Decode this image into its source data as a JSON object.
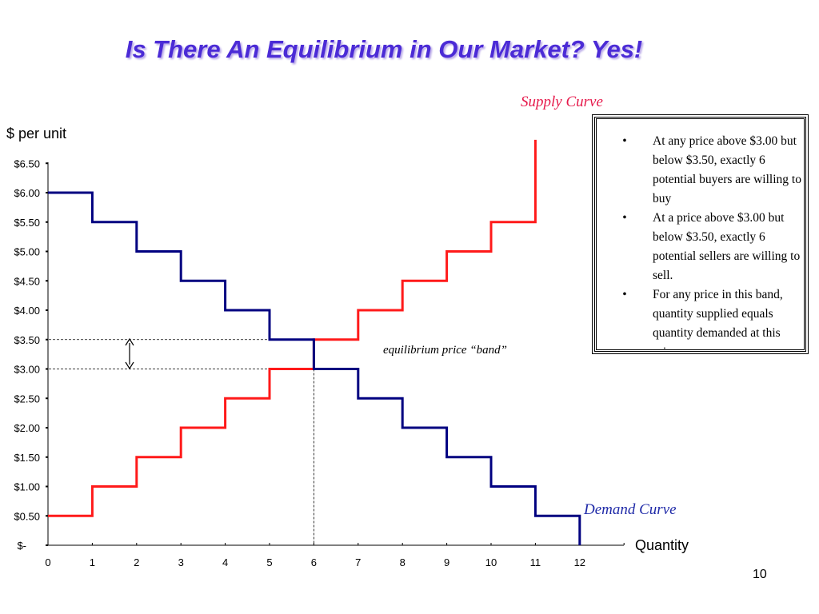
{
  "slide": {
    "title": "Is There An Equilibrium in Our Market? Yes!",
    "page_number": "10"
  },
  "notes": [
    "At any price above $3.00 but below $3.50, exactly 6 potential buyers are willing to buy",
    "At a price above $3.00 but below $3.50, exactly 6 potential sellers are willing to sell.",
    "For any price in this band, quantity supplied equals quantity demanded at this price."
  ],
  "chart_data": {
    "type": "line",
    "step": true,
    "ylabel": "$ per unit",
    "xlabel": "Quantity",
    "x_ticks": [
      "0",
      "1",
      "2",
      "3",
      "4",
      "5",
      "6",
      "7",
      "8",
      "9",
      "10",
      "11",
      "12"
    ],
    "y_ticks": [
      "$-",
      "$0.50",
      "$1.00",
      "$1.50",
      "$2.00",
      "$2.50",
      "$3.00",
      "$3.50",
      "$4.00",
      "$4.50",
      "$5.00",
      "$5.50",
      "$6.00",
      "$6.50"
    ],
    "xlim": [
      0,
      13
    ],
    "ylim": [
      0,
      6.5
    ],
    "series": [
      {
        "name": "Supply Curve",
        "color": "#ff1a1a",
        "steps": [
          {
            "from": 0,
            "to": 1,
            "price": 0.5
          },
          {
            "from": 1,
            "to": 2,
            "price": 1.0
          },
          {
            "from": 2,
            "to": 3,
            "price": 1.5
          },
          {
            "from": 3,
            "to": 4,
            "price": 2.0
          },
          {
            "from": 4,
            "to": 5,
            "price": 2.5
          },
          {
            "from": 5,
            "to": 6,
            "price": 3.0
          },
          {
            "from": 6,
            "to": 7,
            "price": 3.5
          },
          {
            "from": 7,
            "to": 8,
            "price": 4.0
          },
          {
            "from": 8,
            "to": 9,
            "price": 4.5
          },
          {
            "from": 9,
            "to": 10,
            "price": 5.0
          },
          {
            "from": 10,
            "to": 11,
            "price": 5.5
          }
        ],
        "end_price": 6.9
      },
      {
        "name": "Demand Curve",
        "color": "#000080",
        "steps": [
          {
            "from": 0,
            "to": 1,
            "price": 6.0
          },
          {
            "from": 1,
            "to": 2,
            "price": 5.5
          },
          {
            "from": 2,
            "to": 3,
            "price": 5.0
          },
          {
            "from": 3,
            "to": 4,
            "price": 4.5
          },
          {
            "from": 4,
            "to": 5,
            "price": 4.0
          },
          {
            "from": 5,
            "to": 6,
            "price": 3.5
          },
          {
            "from": 6,
            "to": 7,
            "price": 3.0
          },
          {
            "from": 7,
            "to": 8,
            "price": 2.5
          },
          {
            "from": 8,
            "to": 9,
            "price": 2.0
          },
          {
            "from": 9,
            "to": 10,
            "price": 1.5
          },
          {
            "from": 10,
            "to": 11,
            "price": 1.0
          },
          {
            "from": 11,
            "to": 12,
            "price": 0.5
          }
        ],
        "end_price": 0
      }
    ],
    "annotations": {
      "equilibrium_band_label": "equilibrium price “band”",
      "band_low": 3.0,
      "band_high": 3.5,
      "equilibrium_quantity": 6
    }
  }
}
